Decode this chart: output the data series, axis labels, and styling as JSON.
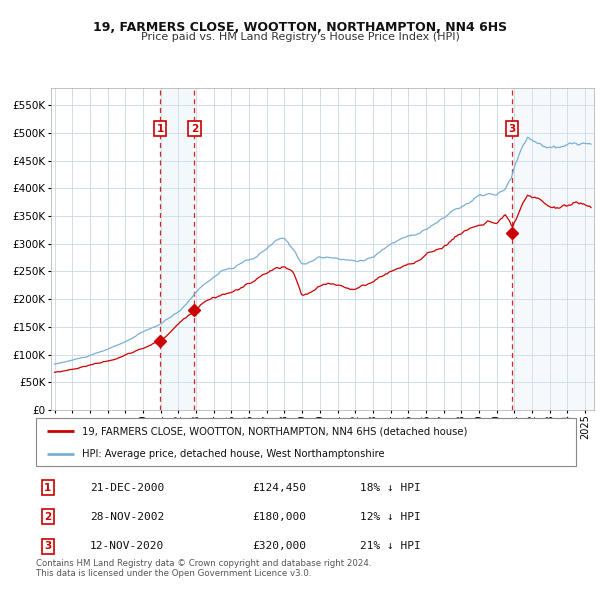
{
  "title": "19, FARMERS CLOSE, WOOTTON, NORTHAMPTON, NN4 6HS",
  "subtitle": "Price paid vs. HM Land Registry's House Price Index (HPI)",
  "legend_label1": "19, FARMERS CLOSE, WOOTTON, NORTHAMPTON, NN4 6HS (detached house)",
  "legend_label2": "HPI: Average price, detached house, West Northamptonshire",
  "sales": [
    {
      "label": "1",
      "date_str": "21-DEC-2000",
      "year": 2000.97,
      "price": 124450,
      "pct": "18%"
    },
    {
      "label": "2",
      "date_str": "28-NOV-2002",
      "year": 2002.91,
      "price": 180000,
      "pct": "12%"
    },
    {
      "label": "3",
      "date_str": "12-NOV-2020",
      "year": 2020.87,
      "price": 320000,
      "pct": "21%"
    }
  ],
  "yticks": [
    0,
    50000,
    100000,
    150000,
    200000,
    250000,
    300000,
    350000,
    400000,
    450000,
    500000,
    550000
  ],
  "ylim": [
    0,
    580000
  ],
  "xlim_start": 1994.8,
  "xlim_end": 2025.5,
  "sale_color": "#cc0000",
  "hpi_color": "#7bafd4",
  "property_color": "#cc0000",
  "marker_color": "#cc0000",
  "shade_color": "#d8e8f5",
  "grid_color": "#c8d8e8",
  "box_color": "#cc0000",
  "footnote1": "Contains HM Land Registry data © Crown copyright and database right 2024.",
  "footnote2": "This data is licensed under the Open Government Licence v3.0."
}
